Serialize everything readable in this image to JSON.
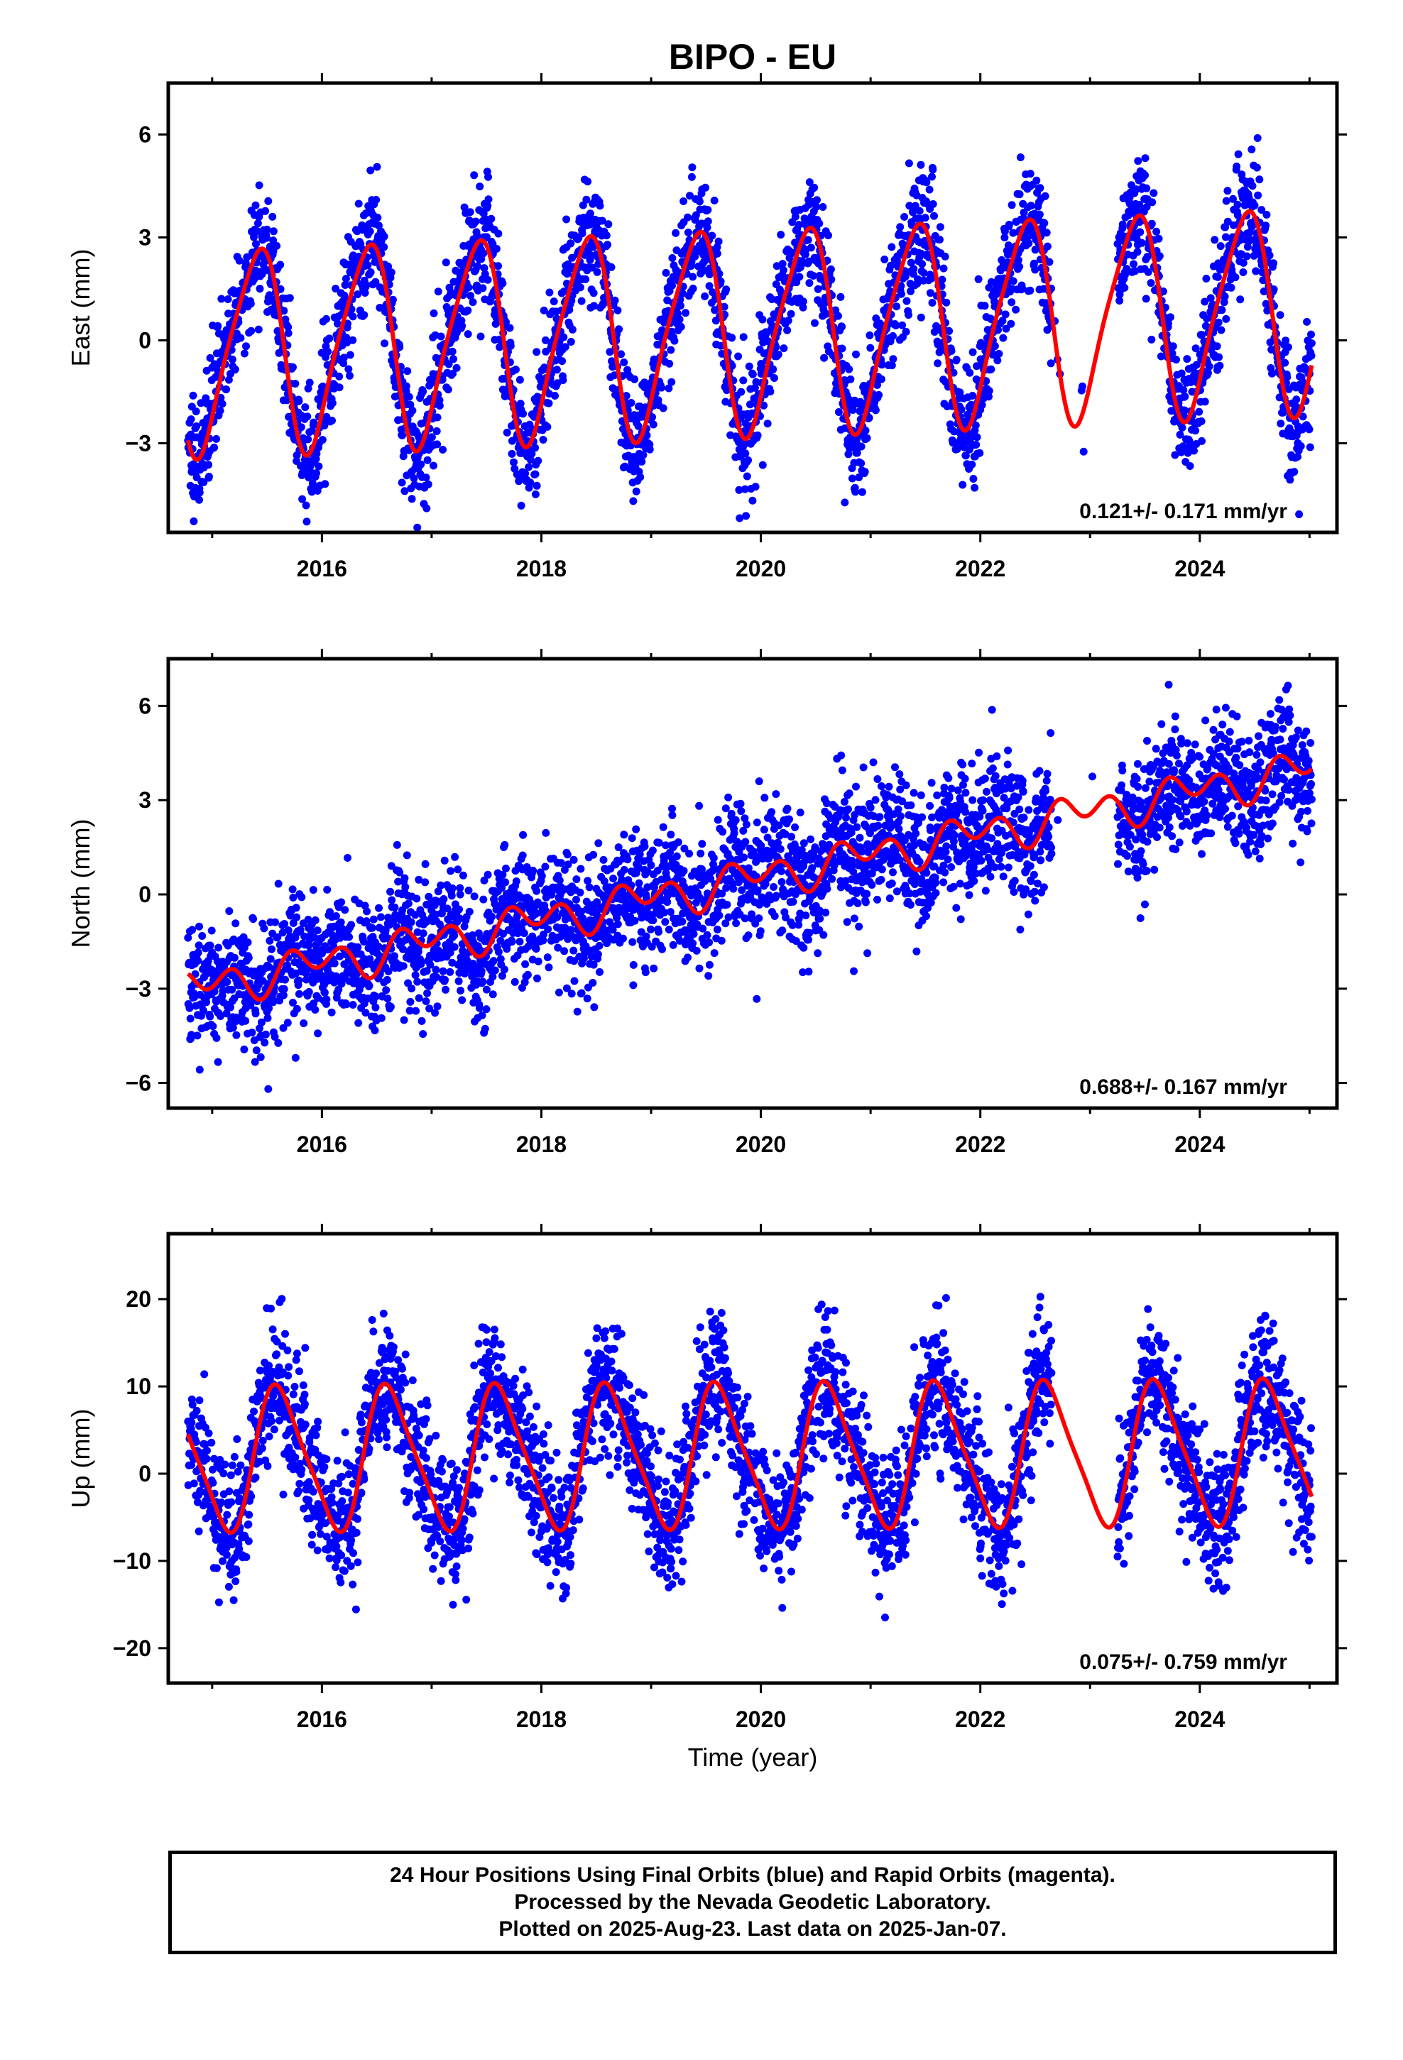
{
  "title": "BIPO - EU",
  "xlabel": "Time (year)",
  "x_tick_labels": [
    "2016",
    "2018",
    "2020",
    "2022",
    "2024"
  ],
  "footer": {
    "line1": "24 Hour Positions Using Final Orbits (blue) and Rapid Orbits (magenta).",
    "line2": "Processed by the Nevada Geodetic Laboratory.",
    "line3": "Plotted on 2025-Aug-23. Last data on 2025-Jan-07."
  },
  "colors": {
    "points": "#0000ff",
    "model": "#ff0000",
    "axes": "#000000"
  },
  "chart_data": [
    {
      "type": "scatter",
      "ylabel": "East (mm)",
      "xlim": [
        2014.6,
        2025.25
      ],
      "ylim": [
        -5.6,
        7.5
      ],
      "yticks": [
        6,
        3,
        0,
        -3
      ],
      "ytick_labels": [
        "6",
        "3",
        "0",
        "−3"
      ],
      "rate_annotation": "0.121+/- 0.171 mm/yr",
      "data_range": [
        2014.78,
        2025.02
      ],
      "gaps": [
        [
          2022.65,
          2023.25
        ]
      ],
      "model": {
        "mean": 0.3,
        "slope": 0.121,
        "t0": 2019.9,
        "amp1": 2.9,
        "phase1": 2015.4,
        "amp2": 0.5,
        "phase2": 2015.05
      },
      "scatter_sd": 0.9,
      "series": [
        {
          "name": "Final Orbits (blue)",
          "kind": "points"
        },
        {
          "name": "Model fit",
          "kind": "line"
        }
      ]
    },
    {
      "type": "scatter",
      "ylabel": "North (mm)",
      "xlim": [
        2014.6,
        2025.25
      ],
      "ylim": [
        -6.8,
        7.5
      ],
      "yticks": [
        6,
        3,
        0,
        -3,
        -6
      ],
      "ytick_labels": [
        "6",
        "3",
        "0",
        "−3",
        "−6"
      ],
      "rate_annotation": "0.688+/- 0.167 mm/yr",
      "data_range": [
        2014.78,
        2025.02
      ],
      "gaps": [
        [
          2022.65,
          2023.25
        ]
      ],
      "model": {
        "mean": 0.5,
        "slope": 0.688,
        "t0": 2019.9,
        "amp1": 0.35,
        "phase1": 2015.9,
        "amp2": 0.45,
        "phase2": 2015.2
      },
      "scatter_sd": 1.0,
      "series": [
        {
          "name": "Final Orbits (blue)",
          "kind": "points"
        },
        {
          "name": "Model fit",
          "kind": "line"
        }
      ]
    },
    {
      "type": "scatter",
      "ylabel": "Up (mm)",
      "xlim": [
        2014.6,
        2025.25
      ],
      "ylim": [
        -24,
        27.5
      ],
      "yticks": [
        20,
        10,
        0,
        -10,
        -20
      ],
      "ytick_labels": [
        "20",
        "10",
        "0",
        "−10",
        "−20"
      ],
      "rate_annotation": "0.075+/- 0.759 mm/yr",
      "data_range": [
        2014.78,
        2025.02
      ],
      "gaps": [
        [
          2022.65,
          2023.25
        ]
      ],
      "model": {
        "mean": 2.0,
        "slope": 0.075,
        "t0": 2019.9,
        "amp1": 8.0,
        "phase1": 2015.62,
        "amp2": 1.5,
        "phase2": 2015.5
      },
      "scatter_sd": 3.8,
      "series": [
        {
          "name": "Final Orbits (blue)",
          "kind": "points"
        },
        {
          "name": "Model fit",
          "kind": "line"
        }
      ]
    }
  ]
}
